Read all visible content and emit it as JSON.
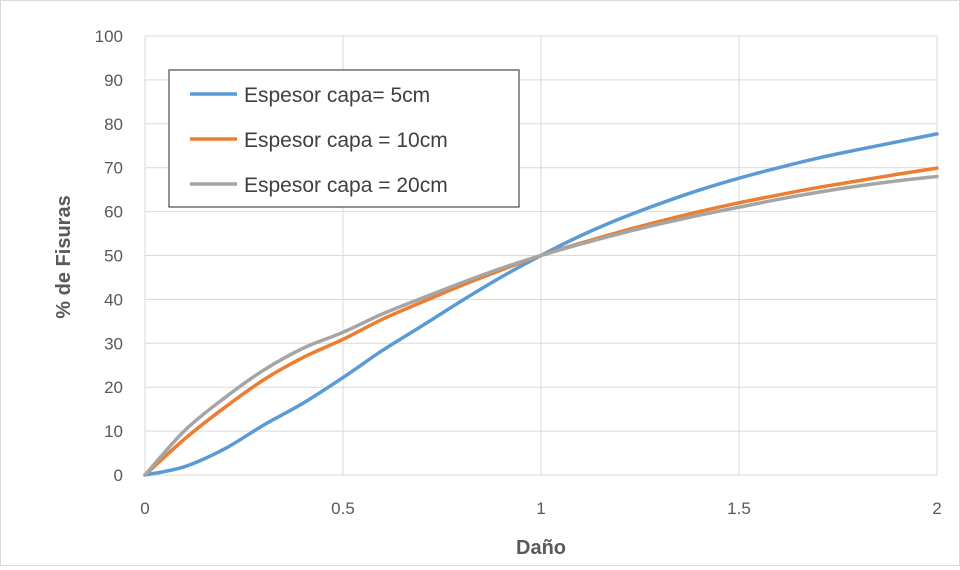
{
  "chart_data": {
    "type": "line",
    "xlabel": "Daño",
    "ylabel": "% de Fisuras",
    "xlim": [
      0,
      2
    ],
    "ylim": [
      0,
      100
    ],
    "x_ticks": [
      "0",
      "0.5",
      "1",
      "1.5",
      "2"
    ],
    "y_ticks": [
      "0",
      "10",
      "20",
      "30",
      "40",
      "50",
      "60",
      "70",
      "80",
      "90",
      "100"
    ],
    "grid": true,
    "legend_position": "top-left",
    "x": [
      0,
      0.1,
      0.2,
      0.3,
      0.4,
      0.5,
      0.6,
      0.7,
      0.8,
      0.9,
      1.0,
      1.1,
      1.2,
      1.3,
      1.4,
      1.5,
      1.6,
      1.7,
      1.8,
      1.9,
      2.0
    ],
    "series": [
      {
        "name": "Espesor capa= 5cm",
        "color": "#5b9bd5",
        "values": [
          0,
          1.9,
          5.9,
          11.4,
          16.4,
          22.2,
          28.4,
          34.0,
          39.7,
          45.1,
          50.0,
          54.5,
          58.4,
          61.8,
          64.9,
          67.6,
          70.0,
          72.2,
          74.1,
          75.9,
          77.7
        ]
      },
      {
        "name": "Espesor capa = 10cm",
        "color": "#ed7d31",
        "values": [
          0,
          8.2,
          15.3,
          21.7,
          26.8,
          30.9,
          35.5,
          39.4,
          43.2,
          46.7,
          50.0,
          52.8,
          55.4,
          57.8,
          60.0,
          62.0,
          63.8,
          65.5,
          67.0,
          68.5,
          69.9
        ]
      },
      {
        "name": "Espesor capa = 20cm",
        "color": "#a5a5a5",
        "values": [
          0,
          10.1,
          17.5,
          23.9,
          28.9,
          32.5,
          36.7,
          40.3,
          43.8,
          47.1,
          50.0,
          52.6,
          55.0,
          57.2,
          59.2,
          61.0,
          62.8,
          64.4,
          65.8,
          67.0,
          68.0
        ]
      }
    ]
  }
}
